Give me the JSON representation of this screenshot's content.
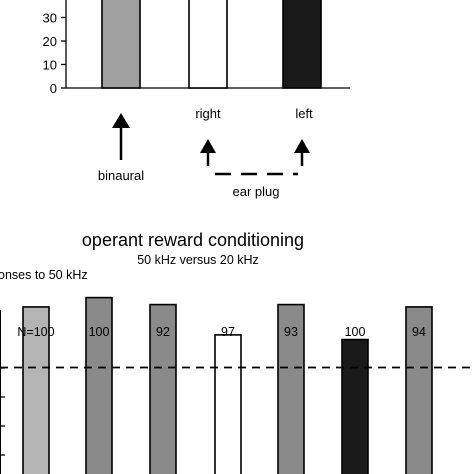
{
  "chart_data": [
    {
      "type": "bar",
      "categories": [
        "binaural",
        "right",
        "left"
      ],
      "values": [
        40,
        40,
        40
      ],
      "colors": [
        "#a0a0a0",
        "#ffffff",
        "#1a1a1a"
      ],
      "ylim": [
        0,
        40
      ],
      "yticks": [
        "0",
        "10",
        "20",
        "30"
      ],
      "category_labels": [
        "binaural",
        "right",
        "left"
      ],
      "annotation": "ear plug",
      "grid": false
    },
    {
      "type": "bar",
      "title": "operant reward conditioning",
      "subtitle": "50 kHz versus 20 kHz",
      "ylabel": "onses to 50 kHz",
      "n_labels": [
        "N=100",
        "100",
        "92",
        "97",
        "93",
        "100",
        "94"
      ],
      "values": [
        76,
        80,
        77,
        64,
        77,
        62,
        76
      ],
      "colors": [
        "#b4b4b4",
        "#8a8a8a",
        "#8a8a8a",
        "#ffffff",
        "#8a8a8a",
        "#1a1a1a",
        "#8a8a8a"
      ],
      "reference_line": 50,
      "grid": false
    }
  ]
}
